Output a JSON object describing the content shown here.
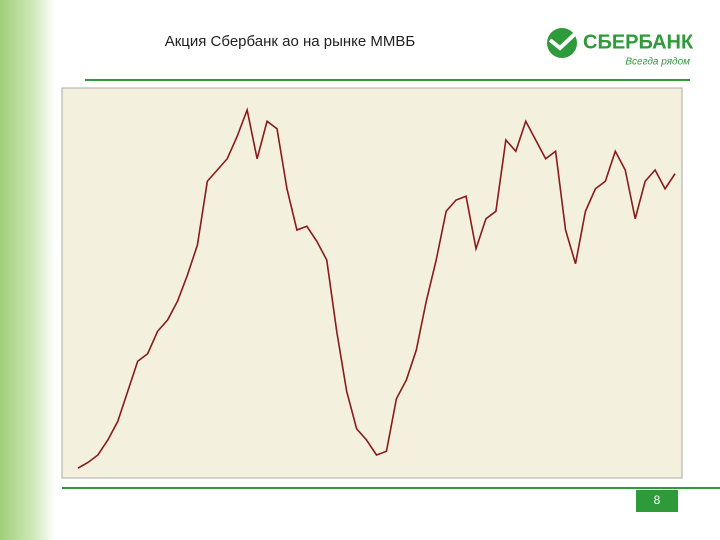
{
  "slide": {
    "title": "Акция Сбербанк ао на рынке ММВБ",
    "logo": "СБЕРБАНК",
    "slogan": "Всегда рядом",
    "page_number": "8"
  },
  "chart_data": {
    "type": "line",
    "color": "#8b1a1a",
    "ylim": [
      0,
      100
    ],
    "values": [
      0.5,
      2,
      4,
      8,
      13,
      21,
      29,
      31,
      37,
      40,
      45,
      52,
      60,
      77,
      80,
      83,
      89,
      96,
      83,
      93,
      91,
      75,
      64,
      65,
      61,
      56,
      37,
      21,
      11,
      8,
      4,
      5,
      19,
      24,
      32,
      45,
      56,
      69,
      72,
      73,
      59,
      67,
      69,
      88,
      85,
      93,
      88,
      83,
      85,
      64,
      55,
      69,
      75,
      77,
      85,
      80,
      67,
      77,
      80,
      75,
      79
    ]
  }
}
